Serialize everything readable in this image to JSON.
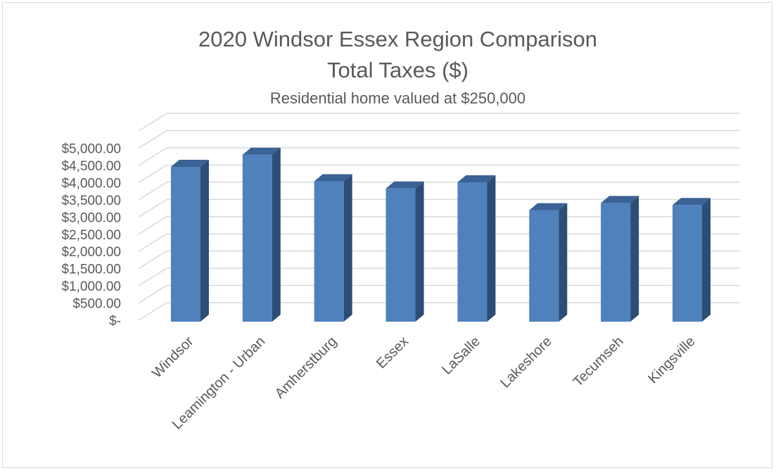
{
  "chart_data": {
    "type": "bar",
    "title_lines": [
      "2020 Windsor Essex Region Comparison",
      "Total Taxes ($)"
    ],
    "subtitle": "Residential home valued at $250,000",
    "categories": [
      "Windsor",
      "Leamington - Urban",
      "Amherstburg",
      "Essex",
      "LaSalle",
      "Lakeshore",
      "Tecumseh",
      "Kingsville"
    ],
    "values": [
      4500,
      4850,
      4080,
      3870,
      4050,
      3240,
      3450,
      3390
    ],
    "y_ticks": [
      0,
      500,
      1000,
      1500,
      2000,
      2500,
      3000,
      3500,
      4000,
      4500,
      5000
    ],
    "y_tick_labels": [
      "$-",
      "$500.00",
      "$1,000.00",
      "$1,500.00",
      "$2,000.00",
      "$2,500.00",
      "$3,000.00",
      "$3,500.00",
      "$4,000.00",
      "$4,500.00",
      "$5,000.00"
    ],
    "ylim": [
      0,
      5000
    ],
    "grid": true,
    "style": "3d-column",
    "colors": {
      "bar_front": "#4f81bd",
      "bar_side": "#2c4d75",
      "bar_top": "#3a6294",
      "grid": "#d9d9d9",
      "text": "#595959"
    }
  }
}
